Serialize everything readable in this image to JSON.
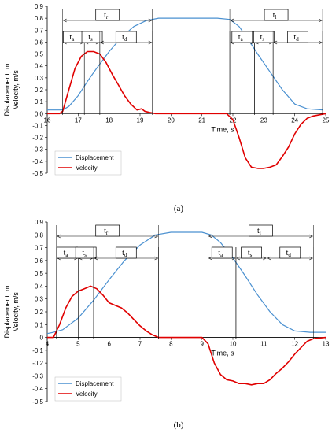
{
  "chart_data": [
    {
      "id": "a",
      "type": "line",
      "caption": "(a)",
      "title": "",
      "xlabel": "Time, s",
      "ylabel_lines": [
        "Displacement, m",
        "Velocity, m/s"
      ],
      "xlim": [
        16,
        25
      ],
      "ylim": [
        -0.5,
        0.9
      ],
      "xticks": [
        16,
        17,
        18,
        19,
        20,
        21,
        22,
        23,
        24,
        25
      ],
      "xtick_labels": [
        "16",
        "17",
        "18",
        "19",
        "20",
        "21",
        "22",
        "23",
        "24",
        "25"
      ],
      "yticks": [
        -0.5,
        -0.4,
        -0.3,
        -0.2,
        -0.1,
        0,
        0.1,
        0.2,
        0.3,
        0.4,
        0.5,
        0.6,
        0.7,
        0.8,
        0.9
      ],
      "ytick_labels": [
        "-0.5",
        "-0.4",
        "-0.3",
        "-0.2",
        "-0.1",
        "0.0",
        "0.1",
        "0.2",
        "0.3",
        "0.4",
        "0.5",
        "0.6",
        "0.7",
        "0.8",
        "0.9"
      ],
      "legend": {
        "position": "bottom-left"
      },
      "series": [
        {
          "name": "Displacement",
          "color": "#4a90d0",
          "x": [
            16,
            16.5,
            16.7,
            17,
            17.3,
            17.6,
            18,
            18.4,
            18.8,
            19.2,
            19.6,
            20,
            21,
            21.5,
            21.9,
            22.2,
            22.5,
            22.8,
            23.2,
            23.6,
            24,
            24.4,
            24.9
          ],
          "y": [
            0.03,
            0.03,
            0.06,
            0.15,
            0.27,
            0.38,
            0.52,
            0.64,
            0.73,
            0.78,
            0.8,
            0.8,
            0.8,
            0.8,
            0.79,
            0.73,
            0.62,
            0.5,
            0.35,
            0.2,
            0.08,
            0.04,
            0.03
          ]
        },
        {
          "name": "Velocity",
          "color": "#e00000",
          "x": [
            16,
            16.4,
            16.5,
            16.7,
            16.9,
            17.1,
            17.3,
            17.5,
            17.7,
            17.9,
            18.1,
            18.3,
            18.5,
            18.7,
            18.9,
            19.05,
            19.15,
            19.3,
            19.5,
            21.5,
            21.8,
            22.0,
            22.2,
            22.4,
            22.6,
            22.8,
            23.0,
            23.2,
            23.4,
            23.6,
            23.8,
            24.0,
            24.2,
            24.4,
            24.6,
            24.8,
            25
          ],
          "y": [
            0,
            0,
            0.02,
            0.2,
            0.38,
            0.48,
            0.52,
            0.52,
            0.5,
            0.43,
            0.33,
            0.24,
            0.15,
            0.08,
            0.03,
            0.04,
            0.02,
            0.01,
            0,
            0,
            0,
            -0.05,
            -0.2,
            -0.37,
            -0.45,
            -0.46,
            -0.46,
            -0.45,
            -0.43,
            -0.36,
            -0.28,
            -0.17,
            -0.09,
            -0.04,
            -0.02,
            -0.01,
            0
          ]
        }
      ],
      "annotations": [
        {
          "label": "t",
          "sub": "r",
          "x0": 16.5,
          "x1": 19.4
        },
        {
          "label": "t",
          "sub": "a",
          "x0": 16.5,
          "x1": 17.2
        },
        {
          "label": "t",
          "sub": "s",
          "x0": 17.2,
          "x1": 17.7
        },
        {
          "label": "t",
          "sub": "d",
          "x0": 17.7,
          "x1": 19.4
        },
        {
          "label": "t",
          "sub": "l",
          "x0": 21.9,
          "x1": 24.9
        },
        {
          "label": "t",
          "sub": "a",
          "x0": 21.9,
          "x1": 22.7
        },
        {
          "label": "t",
          "sub": "s",
          "x0": 22.7,
          "x1": 23.3
        },
        {
          "label": "t",
          "sub": "d",
          "x0": 23.3,
          "x1": 24.9
        }
      ]
    },
    {
      "id": "b",
      "type": "line",
      "caption": "(b)",
      "title": "",
      "xlabel": "Time, s",
      "ylabel_lines": [
        "Displacement, m",
        "Velocity, m/s"
      ],
      "xlim": [
        4,
        13
      ],
      "ylim": [
        -0.5,
        0.9
      ],
      "xticks": [
        4,
        5,
        6,
        7,
        8,
        9,
        10,
        11,
        12,
        13
      ],
      "xtick_labels": [
        "4",
        "5",
        "6",
        "7",
        "8",
        "9",
        "10",
        "11",
        "12",
        "13"
      ],
      "yticks": [
        -0.5,
        -0.4,
        -0.3,
        -0.2,
        -0.1,
        0,
        0.1,
        0.2,
        0.3,
        0.4,
        0.5,
        0.6,
        0.7,
        0.8,
        0.9
      ],
      "ytick_labels": [
        "-0.5",
        "-0.4",
        "-0.3",
        "-0.2",
        "-0.1",
        "0",
        "0.1",
        "0.2",
        "0.3",
        "0.4",
        "0.5",
        "0.6",
        "0.7",
        "0.8",
        "0.9"
      ],
      "legend": {
        "position": "bottom-left"
      },
      "series": [
        {
          "name": "Displacement",
          "color": "#4a90d0",
          "x": [
            4,
            4.2,
            4.5,
            5,
            5.5,
            6,
            6.5,
            7,
            7.5,
            8,
            8.5,
            9,
            9.3,
            9.6,
            10,
            10.4,
            10.8,
            11.2,
            11.6,
            12,
            12.5,
            13
          ],
          "y": [
            0.03,
            0.04,
            0.06,
            0.15,
            0.29,
            0.45,
            0.6,
            0.72,
            0.8,
            0.82,
            0.82,
            0.82,
            0.8,
            0.74,
            0.62,
            0.48,
            0.33,
            0.2,
            0.1,
            0.05,
            0.04,
            0.04
          ]
        },
        {
          "name": "Velocity",
          "color": "#e00000",
          "x": [
            4,
            4.2,
            4.4,
            4.6,
            4.8,
            5.0,
            5.2,
            5.4,
            5.6,
            5.8,
            6.0,
            6.2,
            6.4,
            6.6,
            6.8,
            7.0,
            7.2,
            7.4,
            7.6,
            9.0,
            9.2,
            9.4,
            9.6,
            9.8,
            10.0,
            10.2,
            10.4,
            10.6,
            10.8,
            11.0,
            11.2,
            11.4,
            11.6,
            11.8,
            12.0,
            12.2,
            12.4,
            12.6,
            13
          ],
          "y": [
            0,
            0,
            0.1,
            0.23,
            0.32,
            0.36,
            0.38,
            0.4,
            0.38,
            0.33,
            0.27,
            0.25,
            0.23,
            0.19,
            0.14,
            0.09,
            0.05,
            0.02,
            0,
            0,
            -0.05,
            -0.2,
            -0.29,
            -0.33,
            -0.34,
            -0.36,
            -0.36,
            -0.37,
            -0.36,
            -0.36,
            -0.33,
            -0.28,
            -0.24,
            -0.19,
            -0.13,
            -0.08,
            -0.03,
            -0.01,
            0
          ]
        }
      ],
      "annotations": [
        {
          "label": "t",
          "sub": "r",
          "x0": 4.3,
          "x1": 7.6
        },
        {
          "label": "t",
          "sub": "a",
          "x0": 4.3,
          "x1": 5.0
        },
        {
          "label": "t",
          "sub": "s",
          "x0": 5.0,
          "x1": 5.5
        },
        {
          "label": "t",
          "sub": "d",
          "x0": 5.5,
          "x1": 7.6
        },
        {
          "label": "t",
          "sub": "l",
          "x0": 9.2,
          "x1": 12.6
        },
        {
          "label": "t",
          "sub": "a",
          "x0": 9.2,
          "x1": 10.1
        },
        {
          "label": "t",
          "sub": "s",
          "x0": 10.1,
          "x1": 11.1
        },
        {
          "label": "t",
          "sub": "d",
          "x0": 11.1,
          "x1": 12.6
        }
      ]
    }
  ]
}
